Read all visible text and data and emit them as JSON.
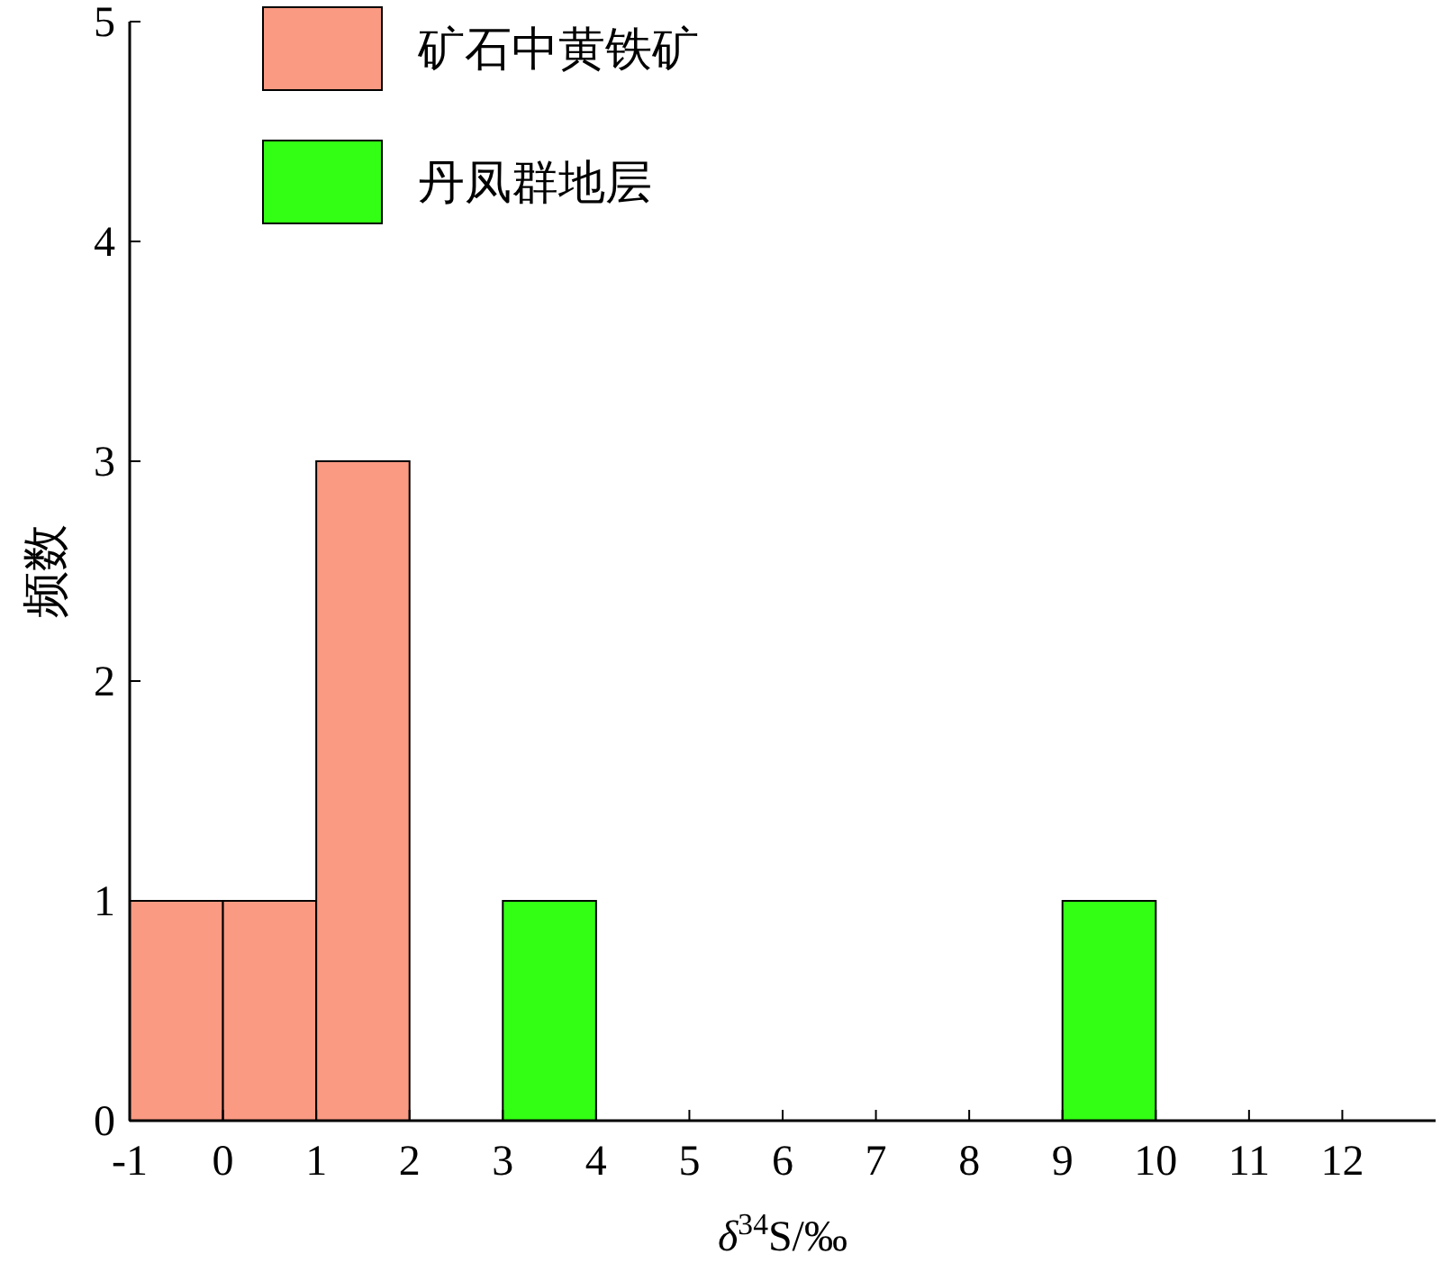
{
  "chart_data": {
    "type": "histogram",
    "xlabel": "δ$^{34}$S/‰",
    "ylabel": "频数",
    "bins": [
      -1,
      0,
      1,
      2,
      3,
      4,
      5,
      6,
      7,
      8,
      9,
      10,
      11,
      12,
      13
    ],
    "series": [
      {
        "name": "矿石中黄铁矿",
        "color": "#fa9a82",
        "values": [
          1,
          1,
          3,
          0,
          0,
          0,
          0,
          0,
          0,
          0,
          0,
          0,
          0,
          0
        ]
      },
      {
        "name": "丹凤群地层",
        "color": "#33ff14",
        "values": [
          0,
          0,
          0,
          0,
          1,
          0,
          0,
          0,
          0,
          0,
          1,
          0,
          0,
          0
        ]
      }
    ],
    "xlim": [
      -1,
      13
    ],
    "xticks": [
      -1,
      0,
      1,
      2,
      3,
      4,
      5,
      6,
      7,
      8,
      9,
      10,
      11,
      12
    ],
    "ylim": [
      0,
      5
    ],
    "yticks": [
      0,
      1,
      2,
      3,
      4,
      5
    ],
    "grid": false,
    "legend": "top left"
  }
}
